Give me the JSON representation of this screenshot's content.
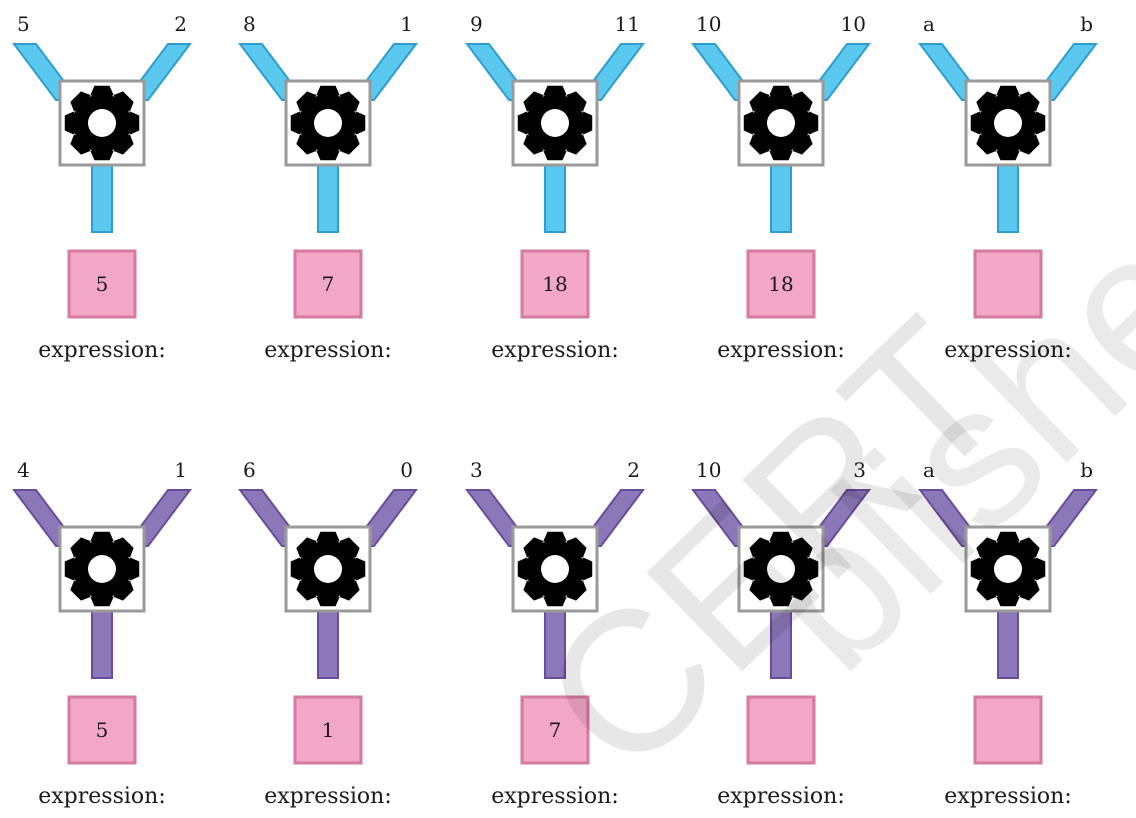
{
  "colors": {
    "row1_arm": "#5bc8ef",
    "row1_arm_stroke": "#2e9ed0",
    "row2_arm": "#8c78b8",
    "row2_arm_stroke": "#6a4c9c",
    "output_fill": "#f2a7c6",
    "output_stroke": "#d57aa1",
    "box_stroke": "#9a9a9a",
    "gear": "#000000"
  },
  "expression_label": "expression:",
  "watermark_text": "© NCERT not to be republished",
  "rows": [
    {
      "theme": "row1",
      "machines": [
        {
          "left": "5",
          "right": "2",
          "output": "5"
        },
        {
          "left": "8",
          "right": "1",
          "output": "7"
        },
        {
          "left": "9",
          "right": "11",
          "output": "18"
        },
        {
          "left": "10",
          "right": "10",
          "output": "18"
        },
        {
          "left": "a",
          "right": "b",
          "output": ""
        }
      ]
    },
    {
      "theme": "row2",
      "machines": [
        {
          "left": "4",
          "right": "1",
          "output": "5"
        },
        {
          "left": "6",
          "right": "0",
          "output": "1"
        },
        {
          "left": "3",
          "right": "2",
          "output": "7"
        },
        {
          "left": "10",
          "right": "3",
          "output": ""
        },
        {
          "left": "a",
          "right": "b",
          "output": ""
        }
      ]
    }
  ]
}
